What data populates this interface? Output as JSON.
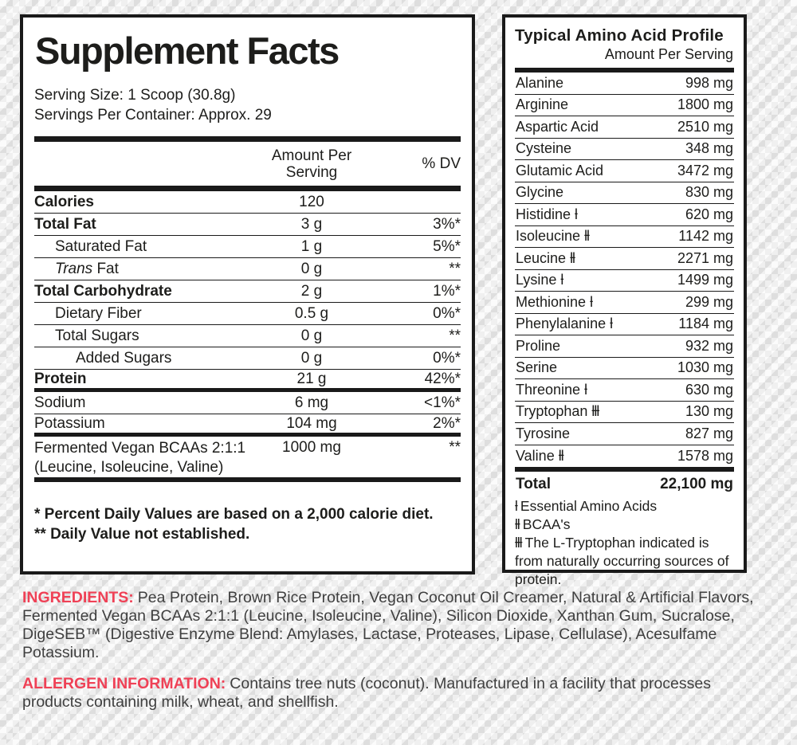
{
  "colors": {
    "accent_red": "#ef4156",
    "panel_border": "#1a1a1a",
    "panel_bg": "#ffffff"
  },
  "supplement_facts": {
    "title": "Supplement Facts",
    "serving_size": "Serving Size: 1 Scoop (30.8g)",
    "servings_per_container": "Servings Per Container: Approx. 29",
    "col_amount_line1": "Amount Per",
    "col_amount_line2": "Serving",
    "col_dv": "% DV",
    "rows": [
      {
        "label": "Calories",
        "amount": "120",
        "dv": ""
      },
      {
        "label": "Total Fat",
        "amount": "3 g",
        "dv": "3%*"
      },
      {
        "label": "Saturated Fat",
        "amount": "1 g",
        "dv": "5%*"
      },
      {
        "label_italic": "Trans",
        "label": " Fat",
        "amount": "0 g",
        "dv": "**"
      },
      {
        "label": "Total Carbohydrate",
        "amount": "2 g",
        "dv": "1%*"
      },
      {
        "label": "Dietary Fiber",
        "amount": "0.5 g",
        "dv": "0%*"
      },
      {
        "label": "Total Sugars",
        "amount": "0 g",
        "dv": "**"
      },
      {
        "label": "Added Sugars",
        "amount": "0 g",
        "dv": "0%*"
      },
      {
        "label": "Protein",
        "amount": "21 g",
        "dv": "42%*"
      },
      {
        "label": "Sodium",
        "amount": "6 mg",
        "dv": "<1%*"
      },
      {
        "label": "Potassium",
        "amount": "104 mg",
        "dv": "2%*"
      },
      {
        "label": "Fermented Vegan BCAAs 2:1:1",
        "label_line2": "(Leucine, Isoleucine, Valine)",
        "amount": "1000 mg",
        "dv": "**"
      }
    ],
    "footnotes": [
      "* Percent Daily Values are based on a 2,000 calorie diet.",
      "** Daily Value not established."
    ]
  },
  "amino_profile": {
    "title": "Typical Amino Acid Profile",
    "subtitle": "Amount Per Serving",
    "rows": [
      {
        "name": "Alanine",
        "marker": "",
        "amount": "998 mg"
      },
      {
        "name": "Arginine",
        "marker": "",
        "amount": "1800 mg"
      },
      {
        "name": "Aspartic Acid",
        "marker": "",
        "amount": "2510 mg"
      },
      {
        "name": "Cysteine",
        "marker": "",
        "amount": "348 mg"
      },
      {
        "name": "Glutamic Acid",
        "marker": "",
        "amount": "3472 mg"
      },
      {
        "name": "Glycine",
        "marker": "",
        "amount": "830 mg"
      },
      {
        "name": "Histidine",
        "marker": "ƚ",
        "amount": "620 mg"
      },
      {
        "name": "Isoleucine",
        "marker": "ƚƚ",
        "amount": "1142 mg"
      },
      {
        "name": "Leucine",
        "marker": "ƚƚ",
        "amount": "2271 mg"
      },
      {
        "name": "Lysine",
        "marker": "ƚ",
        "amount": "1499 mg"
      },
      {
        "name": "Methionine",
        "marker": "ƚ",
        "amount": "299 mg"
      },
      {
        "name": "Phenylalanine",
        "marker": "ƚ",
        "amount": "1184 mg"
      },
      {
        "name": "Proline",
        "marker": "",
        "amount": "932 mg"
      },
      {
        "name": "Serine",
        "marker": "",
        "amount": "1030 mg"
      },
      {
        "name": "Threonine",
        "marker": "ƚ",
        "amount": "630 mg"
      },
      {
        "name": "Tryptophan",
        "marker": "ƚƚƚ",
        "amount": "130 mg"
      },
      {
        "name": "Tyrosine",
        "marker": "",
        "amount": "827 mg"
      },
      {
        "name": "Valine",
        "marker": "ƚƚ",
        "amount": "1578 mg"
      }
    ],
    "total_label": "Total",
    "total_amount": "22,100 mg",
    "legend": [
      {
        "marker": "ƚ",
        "text": "Essential Amino Acids"
      },
      {
        "marker": "ƚƚ",
        "text": "BCAA's"
      },
      {
        "marker": "ƚƚƚ",
        "text": "The L-Tryptophan indicated is from naturally occurring sources of protein."
      }
    ]
  },
  "ingredients": {
    "label": "INGREDIENTS:",
    "text": "Pea Protein, Brown Rice Protein, Vegan Coconut Oil Creamer, Natural & Artificial Flavors, Fermented Vegan BCAAs 2:1:1 (Leucine, Isoleucine, Valine), Silicon Dioxide, Xanthan Gum, Sucralose, DigeSEB™ (Digestive Enzyme Blend: Amylases, Lactase, Proteases, Lipase, Cellulase), Acesulfame Potassium."
  },
  "allergen": {
    "label": "ALLERGEN INFORMATION:",
    "text": "Contains tree nuts (coconut). Manufactured in a facility that processes products containing milk, wheat, and shellfish."
  }
}
